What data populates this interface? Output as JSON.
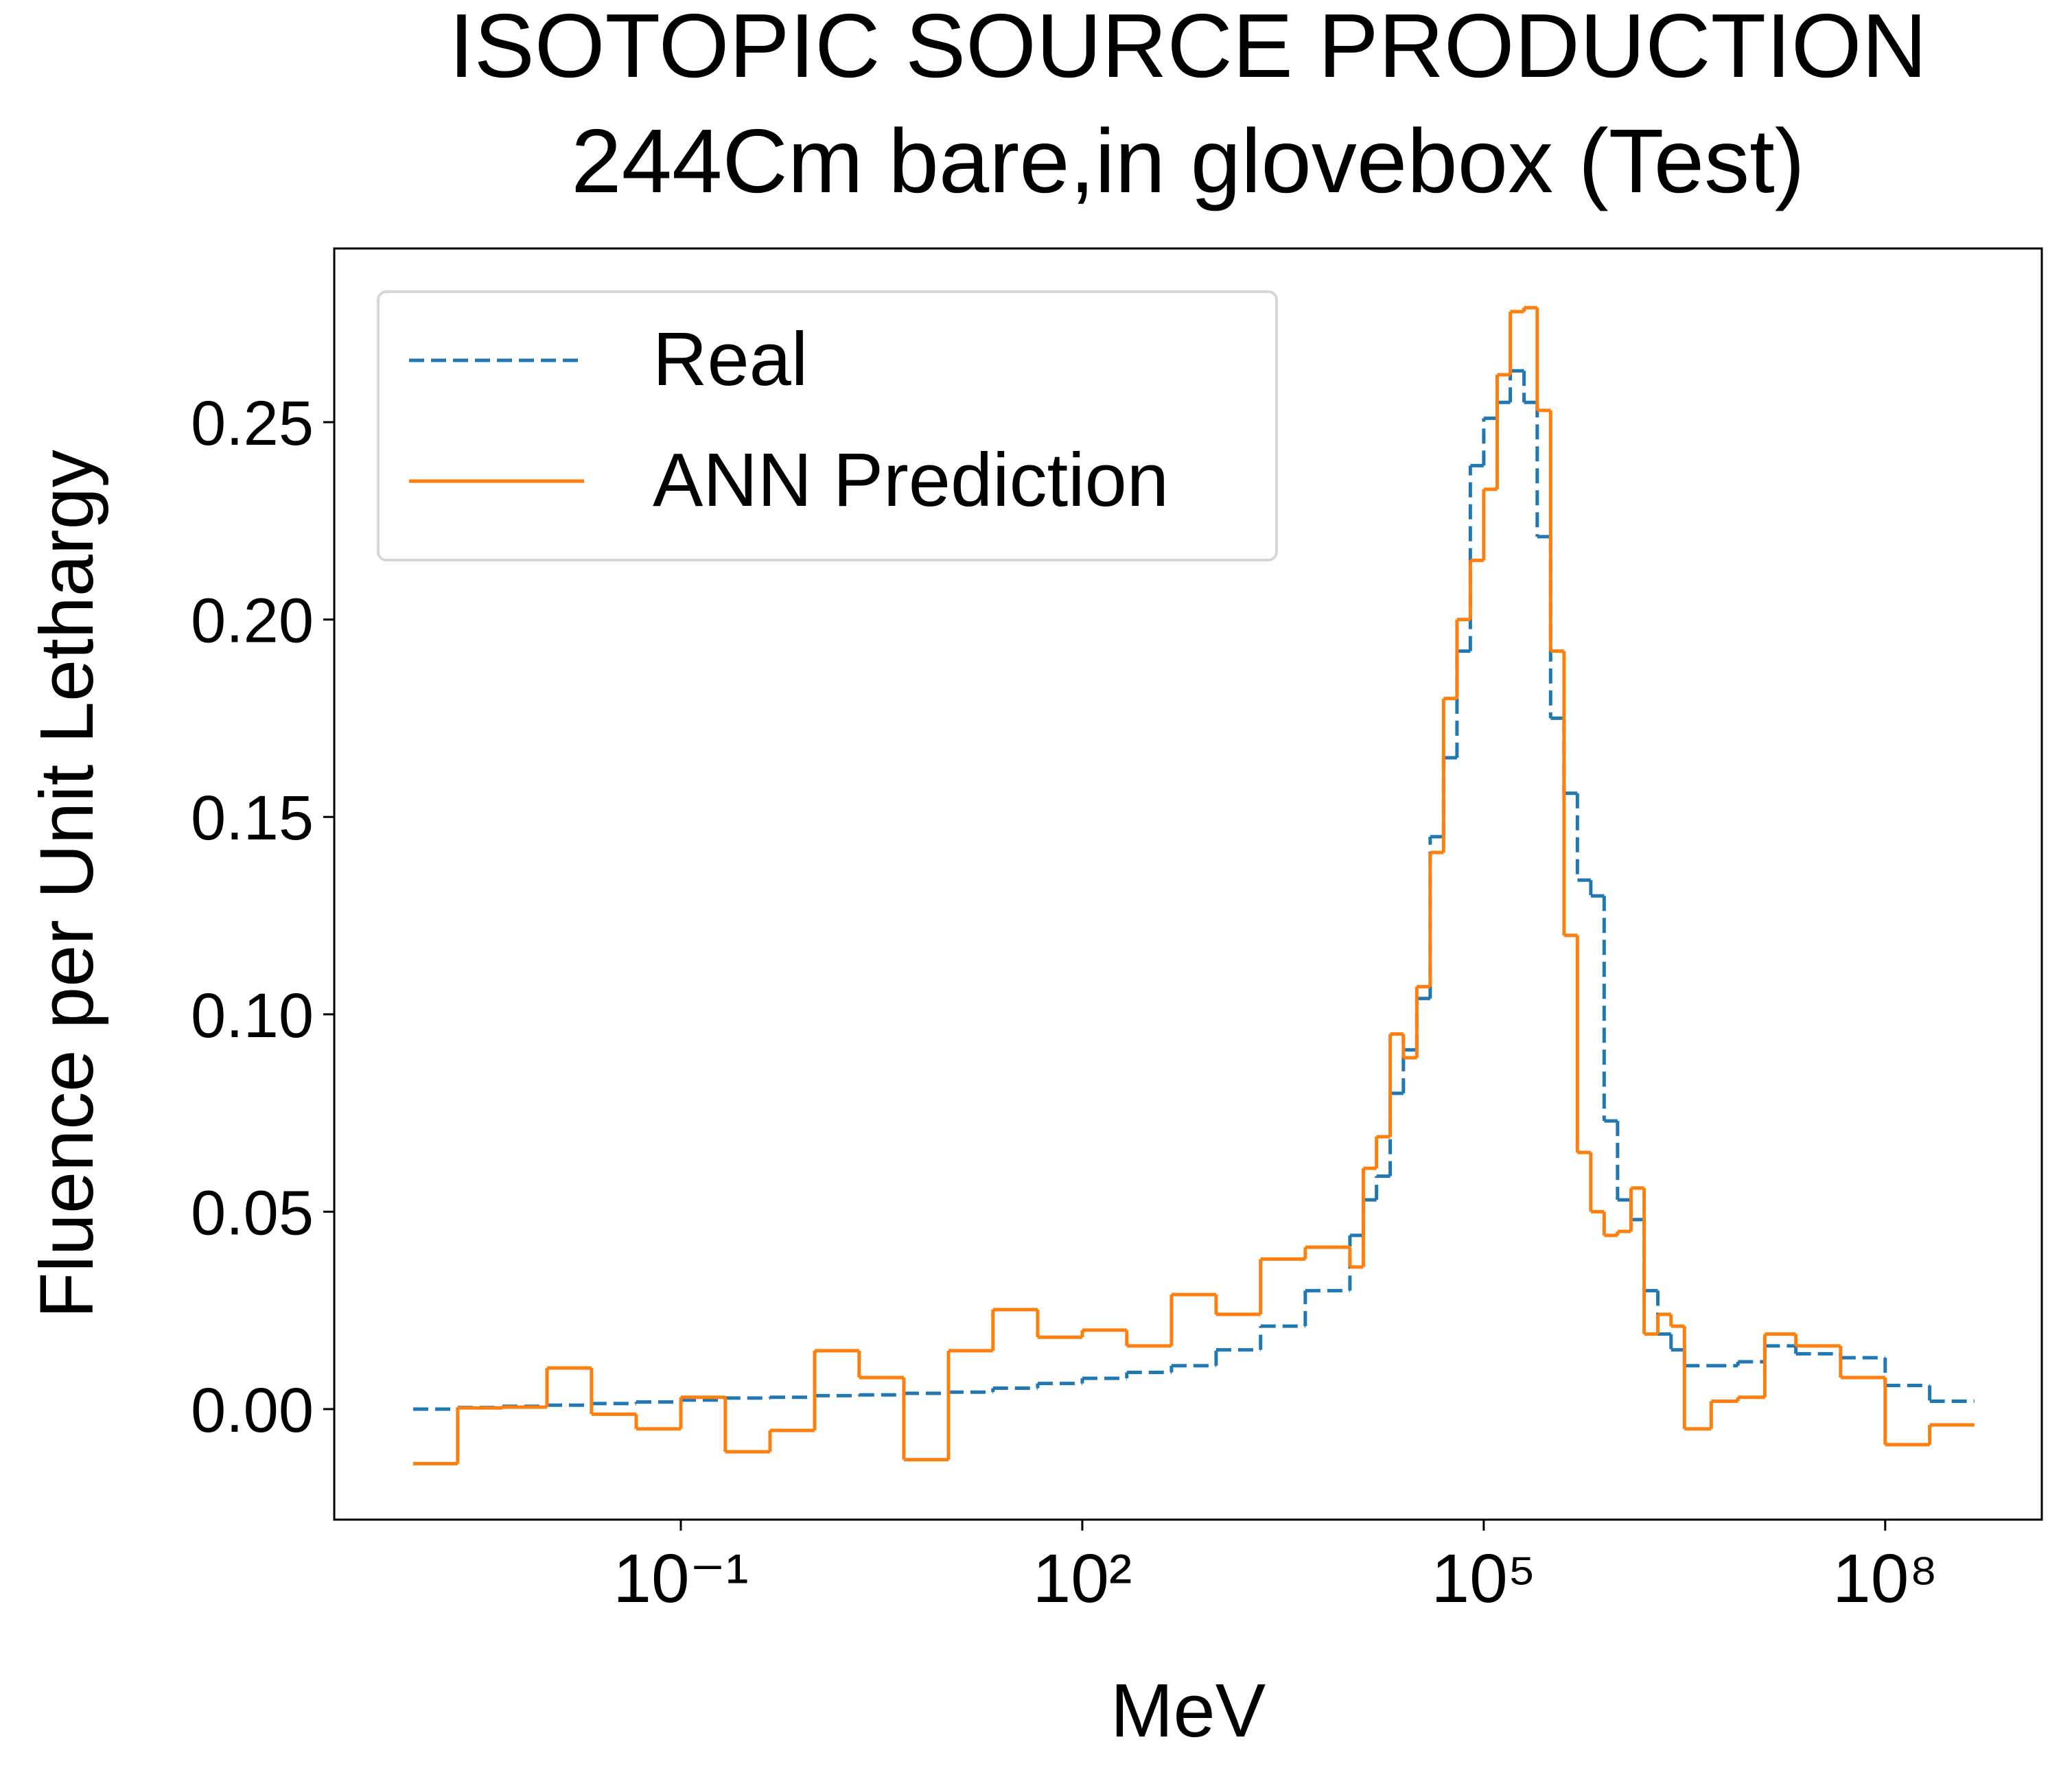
{
  "chart_data": {
    "type": "histogram",
    "title": "ISOTOPIC SOURCE PRODUCTION",
    "subtitle": "244Cm bare,in glovebox (Test)",
    "x_label": "MeV",
    "y_label": "Fluence per Unit Lethargy",
    "x_scale": "log",
    "legend_position": "upper left",
    "bins": [
      0.001,
      0.00215,
      0.00464,
      0.01,
      0.0215,
      0.0464,
      0.1,
      0.215,
      0.464,
      1,
      2.15,
      4.64,
      10,
      21.5,
      46.4,
      100,
      215,
      464,
      1000,
      2150,
      4640,
      10000,
      12600,
      15800,
      20000,
      25100,
      31600,
      39800,
      50100,
      63100,
      79400,
      100000,
      126000,
      158000,
      200000,
      251000,
      316000,
      398000,
      501000,
      631000,
      794000,
      1000000,
      1260000,
      1580000,
      2000000,
      2510000,
      3160000,
      5010000,
      7940000,
      12600000,
      21500000,
      46400000,
      100000000,
      215000000,
      464000000
    ],
    "series": [
      {
        "name": "Real",
        "color": "#1f77b4",
        "linestyle": "dashed",
        "values": [
          0.0,
          0.0004,
          0.0007,
          0.001,
          0.0014,
          0.0018,
          0.0023,
          0.0028,
          0.003,
          0.0034,
          0.0036,
          0.004,
          0.0043,
          0.0053,
          0.0065,
          0.0078,
          0.0093,
          0.011,
          0.015,
          0.021,
          0.03,
          0.044,
          0.053,
          0.059,
          0.08,
          0.091,
          0.104,
          0.145,
          0.165,
          0.192,
          0.239,
          0.251,
          0.255,
          0.263,
          0.255,
          0.221,
          0.175,
          0.156,
          0.134,
          0.13,
          0.073,
          0.053,
          0.048,
          0.03,
          0.019,
          0.015,
          0.011,
          0.011,
          0.012,
          0.016,
          0.014,
          0.013,
          0.006,
          0.002
        ]
      },
      {
        "name": "ANN Prediction",
        "color": "#ff7f0e",
        "linestyle": "solid",
        "values": [
          -0.0138,
          0.0003,
          0.0005,
          0.0104,
          -0.0013,
          -0.005,
          0.003,
          -0.0108,
          -0.0054,
          0.0148,
          0.008,
          -0.0128,
          0.0148,
          0.0252,
          0.0182,
          0.02,
          0.016,
          0.029,
          0.024,
          0.038,
          0.041,
          0.036,
          0.061,
          0.069,
          0.095,
          0.089,
          0.107,
          0.141,
          0.18,
          0.2,
          0.215,
          0.233,
          0.262,
          0.278,
          0.279,
          0.253,
          0.192,
          0.12,
          0.065,
          0.05,
          0.044,
          0.045,
          0.056,
          0.019,
          0.024,
          0.021,
          -0.005,
          0.002,
          0.003,
          0.019,
          0.016,
          0.008,
          -0.009,
          -0.004
        ]
      }
    ],
    "xlim": [
      0.000257,
      1480000000
    ],
    "xticks": [
      {
        "value": 0.1,
        "label": "10⁻¹"
      },
      {
        "value": 100,
        "label": "10²"
      },
      {
        "value": 100000,
        "label": "10⁵"
      },
      {
        "value": 100000000,
        "label": "10⁸"
      }
    ],
    "ylim": [
      -0.028,
      0.294
    ],
    "yticks": [
      {
        "value": 0,
        "label": "0.00"
      },
      0.05,
      {
        "value": 0.1,
        "label": "0.10"
      },
      0.15,
      {
        "value": 0.2,
        "label": "0.20"
      },
      0.25
    ]
  }
}
